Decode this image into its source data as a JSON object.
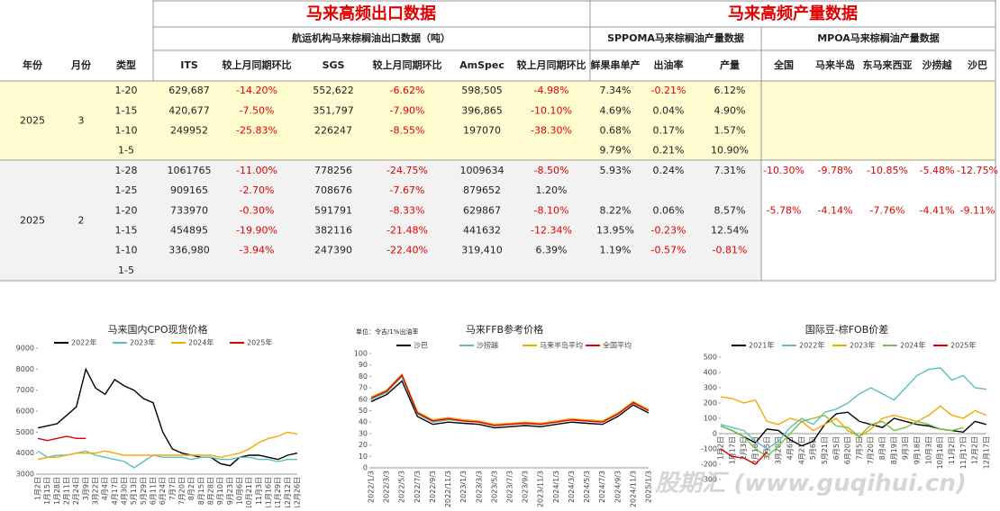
{
  "table": {
    "group_titles": [
      "马来高频出口数据",
      "马来高频产量数据"
    ],
    "sub_titles": [
      "航运机构马来棕榈油出口数据（吨）",
      "SPPOMA马来棕榈油产量数据",
      "MPOA马来棕榈油产量数据"
    ],
    "columns": [
      "年份",
      "月份",
      "类型",
      "ITS",
      "较上月同期环比",
      "SGS",
      "较上月同期环比",
      "AmSpec",
      "较上月同期环比",
      "鲜果串单产",
      "出油率",
      "产量",
      "全国",
      "马来半岛",
      "东马来西亚",
      "沙捞越",
      "沙巴"
    ],
    "groups": [
      {
        "year": "2025",
        "month": "3",
        "rows": [
          [
            "1-20",
            "629,687",
            "-14.20%",
            "552,622",
            "-6.62%",
            "598,505",
            "-4.98%",
            "7.34%",
            "-0.21%",
            "6.12%",
            null,
            null,
            null,
            null,
            null
          ],
          [
            "1-15",
            "420,677",
            "-7.50%",
            "351,797",
            "-7.90%",
            "396,865",
            "-10.10%",
            "4.69%",
            "0.04%",
            "4.90%",
            null,
            null,
            null,
            null,
            null
          ],
          [
            "1-10",
            "249952",
            "-25.83%",
            "226247",
            "-8.55%",
            "197070",
            "-38.30%",
            "0.68%",
            "0.17%",
            "1.57%",
            null,
            null,
            null,
            null,
            null
          ],
          [
            "1-5",
            null,
            null,
            null,
            null,
            null,
            null,
            "9.79%",
            "0.21%",
            "10.90%",
            null,
            null,
            null,
            null,
            null
          ]
        ]
      },
      {
        "year": "2025",
        "month": "2",
        "rows": [
          [
            "1-28",
            "1061765",
            "-11.00%",
            "778256",
            "-24.75%",
            "1009634",
            "-8.50%",
            "5.93%",
            "0.24%",
            "7.31%",
            "-10.30%",
            "-9.78%",
            "-10.85%",
            "-5.48%",
            "-12.75%"
          ],
          [
            "1-25",
            "909165",
            "-2.70%",
            "708676",
            "-7.67%",
            "879652",
            "1.20%",
            null,
            null,
            null,
            null,
            null,
            null,
            null,
            null
          ],
          [
            "1-20",
            "733970",
            "-0.30%",
            "591791",
            "-8.33%",
            "629867",
            "-8.10%",
            "8.22%",
            "0.06%",
            "8.57%",
            "-5.78%",
            "-4.14%",
            "-7.76%",
            "-4.41%",
            "-9.11%"
          ],
          [
            "1-15",
            "454895",
            "-19.90%",
            "382116",
            "-21.48%",
            "441632",
            "-12.34%",
            "13.95%",
            "-0.23%",
            "12.54%",
            null,
            null,
            null,
            null,
            null
          ],
          [
            "1-10",
            "336,980",
            "-3.94%",
            "247390",
            "-22.40%",
            "319,410",
            "6.39%",
            "1.19%",
            "-0.57%",
            "-0.81%",
            null,
            null,
            null,
            null,
            null
          ],
          [
            "1-5",
            null,
            null,
            null,
            null,
            null,
            null,
            null,
            null,
            null,
            null,
            null,
            null,
            null,
            null
          ]
        ]
      }
    ]
  },
  "chart_data": [
    {
      "type": "line",
      "title": "马来国内CPO现货价格",
      "categories": [
        "1月2日",
        "1月15日",
        "1月28日",
        "2月11日",
        "2月24日",
        "3月9日",
        "3月22日",
        "4月4日",
        "4月17日",
        "4月30日",
        "5月13日",
        "5月29日",
        "6月11日",
        "6月24日",
        "7月7日",
        "7月20日",
        "8月2日",
        "8月15日",
        "8月28日",
        "9月10日",
        "9月23日",
        "10月6日",
        "10月21日",
        "11月3日",
        "11月16日",
        "11月29日",
        "12月12日",
        "12月26日"
      ],
      "series": [
        {
          "name": "2022年",
          "color": "#000000",
          "values": [
            5200,
            5300,
            5400,
            5800,
            6200,
            8000,
            7100,
            6800,
            7500,
            7200,
            7000,
            6600,
            6400,
            5000,
            4200,
            4000,
            3900,
            3800,
            3800,
            3500,
            3400,
            3800,
            3900,
            3900,
            3800,
            3700,
            3900,
            4000
          ]
        },
        {
          "name": "2023年",
          "color": "#5bbfbf",
          "values": [
            4100,
            3800,
            3900,
            3900,
            4000,
            4100,
            3900,
            3800,
            3700,
            3600,
            3300,
            3600,
            3900,
            3800,
            3800,
            3800,
            3700,
            3800,
            3800,
            3700,
            3700,
            3800,
            3800,
            3700,
            3700,
            3600,
            3700,
            3700
          ]
        },
        {
          "name": "2024年",
          "color": "#f5a800",
          "values": [
            3700,
            3800,
            3800,
            3900,
            4000,
            4000,
            4000,
            4100,
            4000,
            3900,
            3900,
            3900,
            3900,
            3900,
            3900,
            3900,
            3900,
            3900,
            3900,
            3800,
            3900,
            4000,
            4200,
            4500,
            4700,
            4800,
            5000,
            4900
          ]
        },
        {
          "name": "2025年",
          "color": "#e00000",
          "values": [
            4700,
            4600,
            4700,
            4800,
            4700,
            4700,
            null,
            null,
            null,
            null,
            null,
            null,
            null,
            null,
            null,
            null,
            null,
            null,
            null,
            null,
            null,
            null,
            null,
            null,
            null,
            null,
            null,
            null
          ]
        }
      ],
      "ylim": [
        3000,
        9000
      ],
      "yticks": [
        3000,
        4000,
        5000,
        6000,
        7000,
        8000,
        9000
      ]
    },
    {
      "type": "line",
      "title": "马来FFB参考价格",
      "subtitle": "单位：令吉/1%出油率",
      "categories": [
        "2022/1/3",
        "2022/3/3",
        "2022/5/3",
        "2022/7/3",
        "2022/9/3",
        "2022/11/3",
        "2023/1/3",
        "2023/3/3",
        "2023/5/3",
        "2023/7/3",
        "2023/9/3",
        "2023/11/3",
        "2024/1/3",
        "2024/3/3",
        "2024/5/3",
        "2024/7/3",
        "2024/9/3",
        "2024/11/3",
        "2025/1/3"
      ],
      "series": [
        {
          "name": "沙巴",
          "color": "#000000",
          "values": [
            58,
            64,
            76,
            45,
            38,
            40,
            39,
            38,
            35,
            36,
            37,
            36,
            38,
            40,
            39,
            38,
            45,
            55,
            48
          ]
        },
        {
          "name": "沙捞越",
          "color": "#5bbfbf",
          "values": [
            60,
            66,
            80,
            47,
            40,
            42,
            41,
            40,
            37,
            38,
            39,
            38,
            40,
            42,
            41,
            40,
            47,
            57,
            50
          ]
        },
        {
          "name": "马来半岛平均",
          "color": "#f5a800",
          "values": [
            62,
            68,
            82,
            49,
            42,
            44,
            42,
            41,
            38,
            39,
            40,
            39,
            41,
            43,
            42,
            41,
            48,
            58,
            51
          ]
        },
        {
          "name": "全国平均",
          "color": "#e00000",
          "values": [
            61,
            67,
            81,
            48,
            41,
            43,
            41,
            40,
            37,
            38,
            39,
            38,
            40,
            42,
            41,
            40,
            47,
            57,
            50
          ]
        }
      ],
      "ylim": [
        0,
        100
      ],
      "yticks": [
        0,
        10,
        20,
        30,
        40,
        50,
        60,
        70,
        80,
        90,
        100
      ]
    },
    {
      "type": "line",
      "title": "国际豆-棕FOB价差",
      "categories": [
        "1月2日",
        "1月17日",
        "2月3日",
        "2月18日",
        "3月5日",
        "3月20日",
        "4月6日",
        "4月21日",
        "5月6日",
        "5月21日",
        "6月5日",
        "6月20日",
        "7月5日",
        "7月20日",
        "8月4日",
        "8月19日",
        "9月3日",
        "9月18日",
        "10月3日",
        "10月18日",
        "11月2日",
        "11月17日",
        "12月2日",
        "12月17日"
      ],
      "series": [
        {
          "name": "2021年",
          "color": "#000000",
          "values": [
            50,
            20,
            -20,
            -60,
            30,
            20,
            -40,
            -80,
            -50,
            60,
            130,
            140,
            80,
            60,
            40,
            100,
            80,
            60,
            50,
            30,
            20,
            10,
            80,
            60
          ]
        },
        {
          "name": "2022年",
          "color": "#5bbfbf",
          "values": [
            60,
            40,
            20,
            -50,
            -100,
            -50,
            40,
            100,
            60,
            140,
            160,
            200,
            260,
            300,
            260,
            220,
            300,
            380,
            420,
            430,
            350,
            380,
            300,
            290
          ]
        },
        {
          "name": "2023年",
          "color": "#f5a800",
          "values": [
            240,
            230,
            200,
            220,
            80,
            60,
            100,
            80,
            20,
            60,
            100,
            20,
            -20,
            30,
            100,
            120,
            100,
            80,
            120,
            180,
            120,
            100,
            150,
            120
          ]
        },
        {
          "name": "2024年",
          "color": "#7ac143",
          "values": [
            50,
            20,
            -20,
            -100,
            -150,
            -80,
            0,
            80,
            100,
            120,
            50,
            40,
            -20,
            60,
            80,
            20,
            40,
            80,
            60,
            30,
            20,
            40,
            null,
            null
          ]
        },
        {
          "name": "2025年",
          "color": "#e00000",
          "values": [
            -100,
            -150,
            -160,
            -200,
            -120,
            null,
            null,
            null,
            null,
            null,
            null,
            null,
            null,
            null,
            null,
            null,
            null,
            null,
            null,
            null,
            null,
            null,
            null,
            null
          ]
        }
      ],
      "ylim": [
        -300,
        500
      ],
      "yticks": [
        -300,
        -200,
        -100,
        0,
        100,
        200,
        300,
        400,
        500
      ]
    }
  ],
  "watermark": "股期汇 (www.guqihui.cn)"
}
